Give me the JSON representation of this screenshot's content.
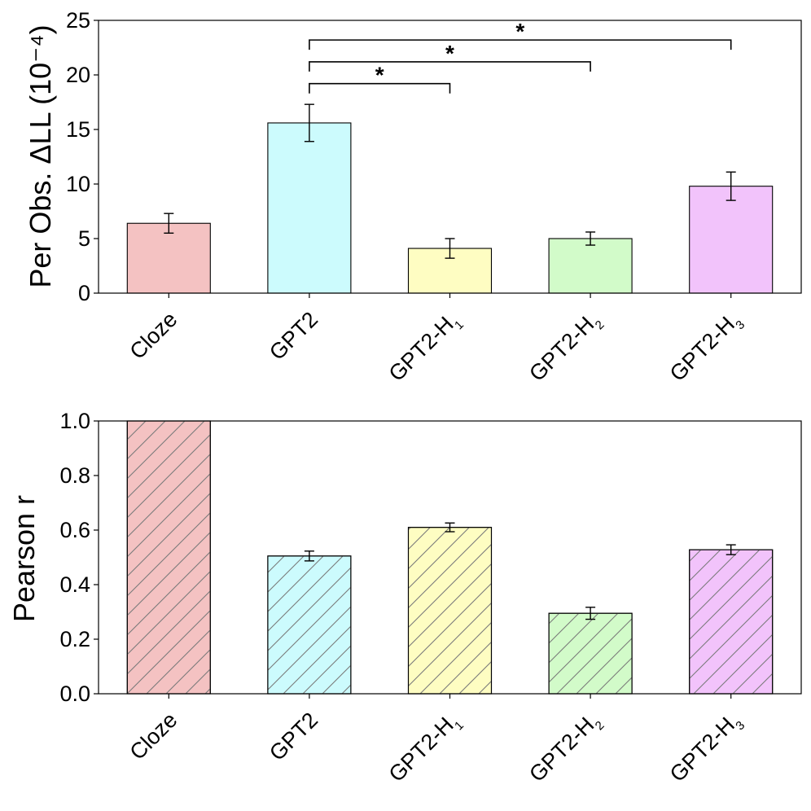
{
  "colors": {
    "Cloze": "#f4c2c2",
    "GPT2": "#ccfbfd",
    "GPT2-H1": "#fefdc2",
    "GPT2-H2": "#d2fbc9",
    "GPT2-H3": "#f2c3fb",
    "hatch": "#7a7a7a"
  },
  "chart_data": [
    {
      "type": "bar",
      "title": "",
      "xlabel": "",
      "ylabel": "Per Obs. ΔLL (10⁻⁴)",
      "ylim": [
        0,
        25
      ],
      "yticks": [
        0,
        5,
        10,
        15,
        20,
        25
      ],
      "ytick_labels": [
        "0",
        "5",
        "10",
        "15",
        "20",
        "25"
      ],
      "grid": false,
      "categories": [
        {
          "main": "Cloze",
          "sub": ""
        },
        {
          "main": "GPT2",
          "sub": ""
        },
        {
          "main": "GPT2-H",
          "sub": "1"
        },
        {
          "main": "GPT2-H",
          "sub": "2"
        },
        {
          "main": "GPT2-H",
          "sub": "3"
        }
      ],
      "values": [
        6.4,
        15.6,
        4.1,
        5.0,
        9.8
      ],
      "errors": [
        0.9,
        1.7,
        0.9,
        0.6,
        1.3
      ],
      "hatch": false,
      "significance": [
        {
          "from": 1,
          "to": 2,
          "y": 19.2,
          "label": "*"
        },
        {
          "from": 1,
          "to": 3,
          "y": 21.2,
          "label": "*"
        },
        {
          "from": 1,
          "to": 4,
          "y": 23.2,
          "label": "*"
        }
      ]
    },
    {
      "type": "bar",
      "title": "",
      "xlabel": "",
      "ylabel": "Pearson r",
      "ylim": [
        0,
        1.0
      ],
      "yticks": [
        0,
        0.2,
        0.4,
        0.6,
        0.8,
        1.0
      ],
      "ytick_labels": [
        "0.0",
        "0.2",
        "0.4",
        "0.6",
        "0.8",
        "1.0"
      ],
      "grid": false,
      "categories": [
        {
          "main": "Cloze",
          "sub": ""
        },
        {
          "main": "GPT2",
          "sub": ""
        },
        {
          "main": "GPT2-H",
          "sub": "1"
        },
        {
          "main": "GPT2-H",
          "sub": "2"
        },
        {
          "main": "GPT2-H",
          "sub": "3"
        }
      ],
      "values": [
        1.0,
        0.505,
        0.61,
        0.295,
        0.528
      ],
      "errors": [
        0,
        0.018,
        0.016,
        0.022,
        0.018
      ],
      "hatch": true,
      "significance": []
    }
  ]
}
